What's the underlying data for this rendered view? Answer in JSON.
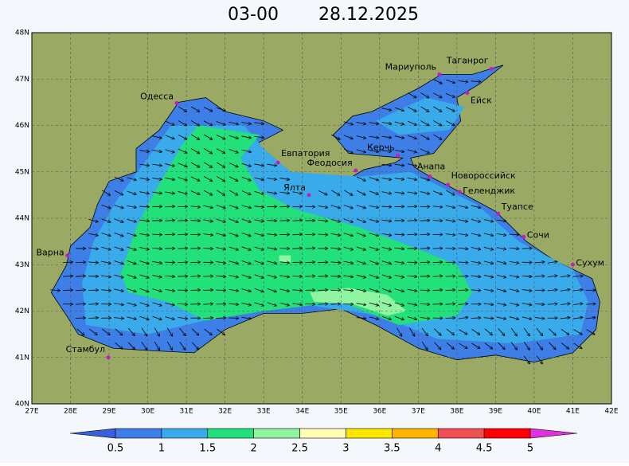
{
  "header": {
    "time": "03-00",
    "date": "28.12.2025"
  },
  "map": {
    "lat_ticks": [
      "40N",
      "41N",
      "42N",
      "43N",
      "44N",
      "45N",
      "46N",
      "47N",
      "48N"
    ],
    "lon_ticks": [
      "27E",
      "28E",
      "29E",
      "30E",
      "31E",
      "32E",
      "33E",
      "34E",
      "35E",
      "36E",
      "37E",
      "38E",
      "39E",
      "40E",
      "41E",
      "42E"
    ],
    "cities": [
      "Одесса",
      "Евпатория",
      "Феодосия",
      "Керчь",
      "Ялта",
      "Мариуполь",
      "Таганрог",
      "Ейск",
      "Анапа",
      "Новороссийск",
      "Геленджик",
      "Туапсе",
      "Сочи",
      "Сухум",
      "Варна",
      "Стамбул"
    ]
  },
  "colorbar": {
    "labels": [
      "0.5",
      "1",
      "1.5",
      "2",
      "2.5",
      "3",
      "3.5",
      "4",
      "4.5",
      "5"
    ],
    "colors": [
      "#3a5fdc",
      "#3d7fe6",
      "#39aaea",
      "#22e07a",
      "#8ff5a0",
      "#ffffb8",
      "#ffe600",
      "#ffb400",
      "#f05050",
      "#ff0000",
      "#e030e0"
    ]
  }
}
